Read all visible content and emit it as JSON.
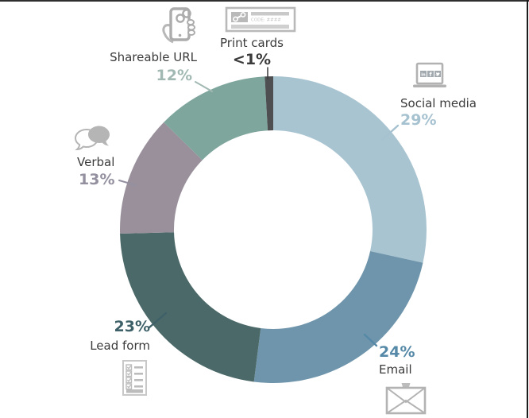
{
  "page": {
    "background": "#ffffff",
    "top_rule_color": "#2e2e2e",
    "right_rule_color": "#1c1c1c"
  },
  "icons": {
    "print_card_code_text": "CODE: ####",
    "social_badge_linkedin": "in",
    "social_badge_facebook": "f"
  },
  "chart_data": {
    "type": "donut",
    "title": "",
    "order": "clockwise-from-top",
    "label_text_color": "#3b3b3b",
    "donut_hole_ratio": 0.65,
    "series": [
      {
        "label": "Social media",
        "value": 29,
        "display": "29%",
        "color": "#a9c4d1",
        "pct_color": "#a6c2d0",
        "icon": "laptop-social-icon"
      },
      {
        "label": "Email",
        "value": 24,
        "display": "24%",
        "color": "#6e95ab",
        "pct_color": "#5589a7",
        "icon": "envelope-icon"
      },
      {
        "label": "Lead form",
        "value": 23,
        "display": "23%",
        "color": "#4b6968",
        "pct_color": "#3e6068",
        "icon": "checklist-icon"
      },
      {
        "label": "Verbal",
        "value": 13,
        "display": "13%",
        "color": "#99909c",
        "pct_color": "#94909f",
        "icon": "speech-bubbles-icon"
      },
      {
        "label": "Shareable URL",
        "value": 12,
        "display": "12%",
        "color": "#7ea69d",
        "pct_color": "#a2b9b3",
        "icon": "phone-link-icon"
      },
      {
        "label": "Print cards",
        "value": 0.9,
        "display": "<1%",
        "color": "#4e4f51",
        "pct_color": "#3a3a3a",
        "icon": "print-card-icon"
      }
    ]
  }
}
